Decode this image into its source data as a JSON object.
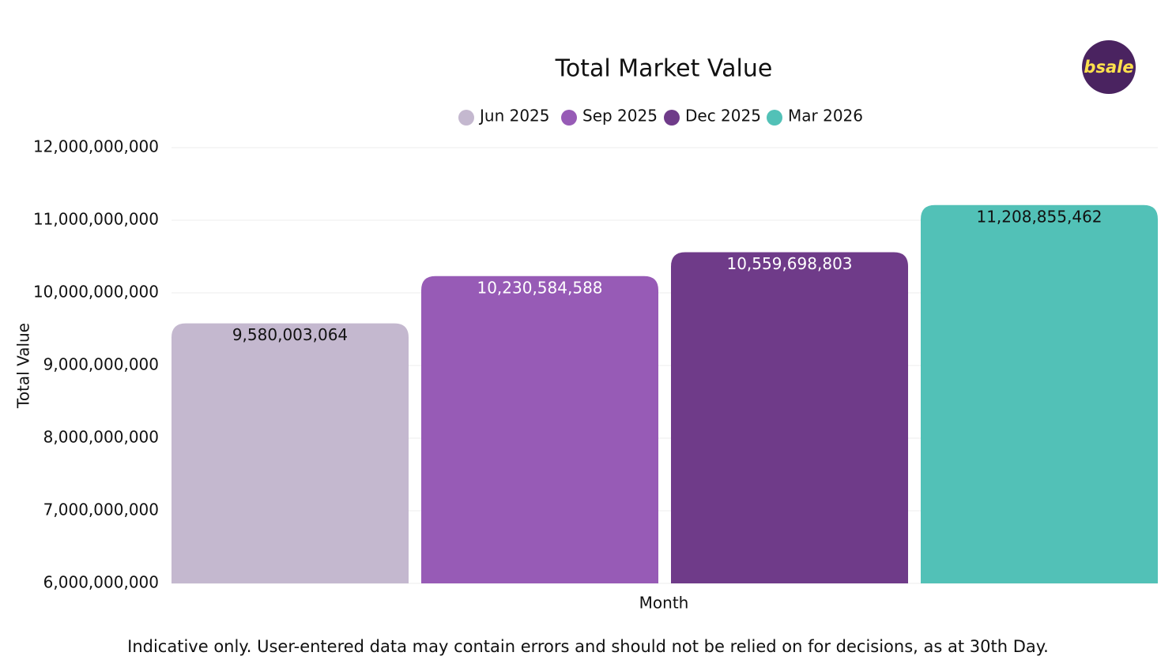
{
  "chart_data": {
    "type": "bar",
    "title": "Total Market Value",
    "x_label": "Month",
    "y_label": "Total Value",
    "categories": [
      null
    ],
    "series": [
      {
        "name": "Jun 2025",
        "color": "#c4b8cf",
        "label_color": "#111111",
        "values": [
          9580003064
        ],
        "value_labels": [
          "9,580,003,064"
        ]
      },
      {
        "name": "Sep 2025",
        "color": "#975bb6",
        "label_color": "#ffffff",
        "values": [
          10230584588
        ],
        "value_labels": [
          "10,230,584,588"
        ]
      },
      {
        "name": "Dec 2025",
        "color": "#6f3b89",
        "label_color": "#ffffff",
        "values": [
          10559698803
        ],
        "value_labels": [
          "10,559,698,803"
        ]
      },
      {
        "name": "Mar 2026",
        "color": "#52c1b7",
        "label_color": "#111111",
        "values": [
          11208855462
        ],
        "value_labels": [
          "11,208,855,462"
        ]
      }
    ],
    "ylim": [
      6000000000,
      12000000000
    ],
    "yticks": [
      {
        "value": 6000000000,
        "label": "6,000,000,000"
      },
      {
        "value": 7000000000,
        "label": "7,000,000,000"
      },
      {
        "value": 8000000000,
        "label": "8,000,000,000"
      },
      {
        "value": 9000000000,
        "label": "9,000,000,000"
      },
      {
        "value": 10000000000,
        "label": "10,000,000,000"
      },
      {
        "value": 11000000000,
        "label": "11,000,000,000"
      },
      {
        "value": 12000000000,
        "label": "12,000,000,000"
      }
    ],
    "grid": true,
    "legend": "top"
  },
  "logo": {
    "text": "bsale"
  },
  "footnote": "Indicative only. User-entered data may contain errors and should not be relied on for decisions, as at 30th Day."
}
